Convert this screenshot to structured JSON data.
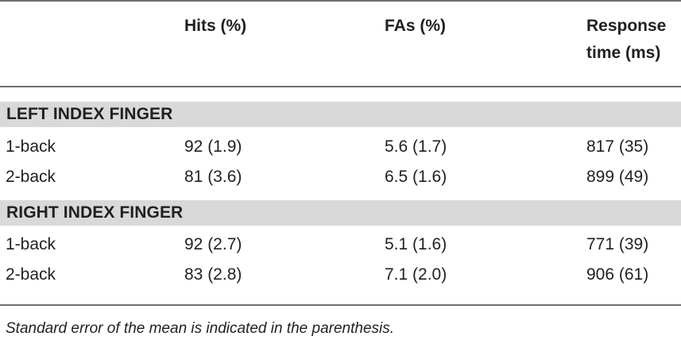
{
  "table": {
    "headers": {
      "row_label": "",
      "hits": "Hits (%)",
      "fas": "FAs (%)",
      "response_line1": "Response",
      "response_line2": "time (ms)"
    },
    "sections": [
      {
        "title": "LEFT INDEX FINGER",
        "rows": [
          {
            "label": "1-back",
            "hits": "92 (1.9)",
            "fas": "5.6 (1.7)",
            "rt": "817 (35)"
          },
          {
            "label": "2-back",
            "hits": "81 (3.6)",
            "fas": "6.5 (1.6)",
            "rt": "899 (49)"
          }
        ]
      },
      {
        "title": "RIGHT INDEX FINGER",
        "rows": [
          {
            "label": "1-back",
            "hits": "92 (2.7)",
            "fas": "5.1 (1.6)",
            "rt": "771 (39)"
          },
          {
            "label": "2-back",
            "hits": "83 (2.8)",
            "fas": "7.1 (2.0)",
            "rt": "906 (61)"
          }
        ]
      }
    ],
    "footnote": "Standard error of the mean is indicated in the parenthesis."
  },
  "colors": {
    "section_bg": "#d9d9d9",
    "rule": "#6f6f6f",
    "text": "#231f20"
  }
}
